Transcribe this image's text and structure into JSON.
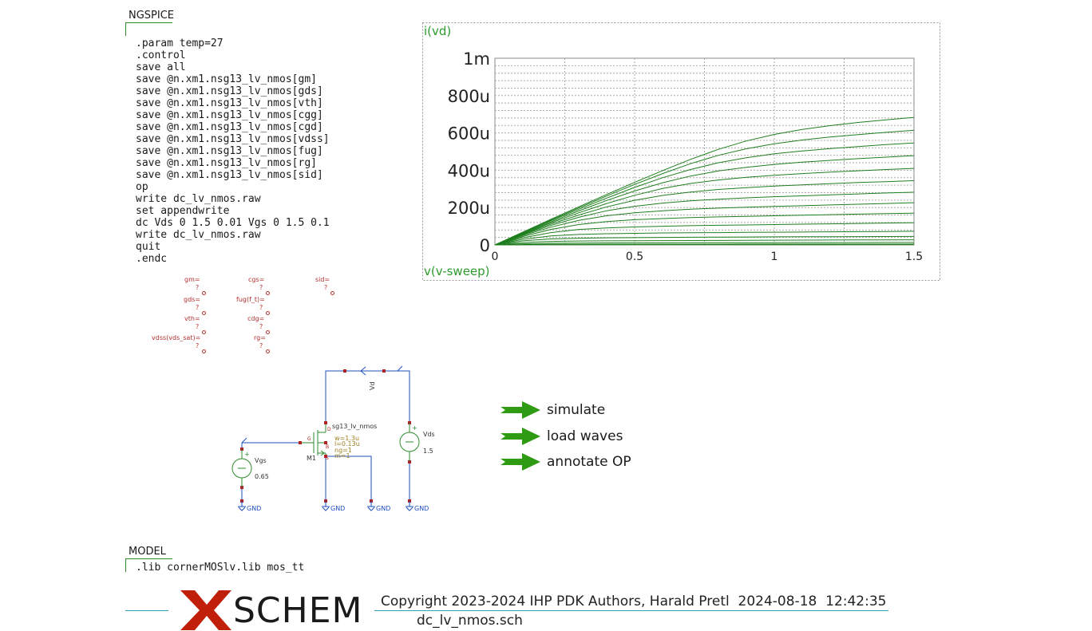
{
  "ngspice": {
    "title": "NGSPICE",
    "code": ".param temp=27\n.control\nsave all\nsave @n.xm1.nsg13_lv_nmos[gm]\nsave @n.xm1.nsg13_lv_nmos[gds]\nsave @n.xm1.nsg13_lv_nmos[vth]\nsave @n.xm1.nsg13_lv_nmos[cgg]\nsave @n.xm1.nsg13_lv_nmos[cgd]\nsave @n.xm1.nsg13_lv_nmos[vdss]\nsave @n.xm1.nsg13_lv_nmos[fug]\nsave @n.xm1.nsg13_lv_nmos[rg]\nsave @n.xm1.nsg13_lv_nmos[sid]\nop\nwrite dc_lv_nmos.raw\nset appendwrite\ndc Vds 0 1.5 0.01 Vgs 0 1.5 0.1\nwrite dc_lv_nmos.raw\nquit\n.endc"
  },
  "model": {
    "title": "MODEL",
    "line": ".lib cornerMOSlv.lib mos_tt"
  },
  "op_annotations": {
    "gm": {
      "label": "gm=",
      "value": "?"
    },
    "gds": {
      "label": "gds=",
      "value": "?"
    },
    "vth": {
      "label": "vth=",
      "value": "?"
    },
    "vdss": {
      "label": "vdss(vds_sat)=",
      "value": "?"
    },
    "cgs": {
      "label": "cgs=",
      "value": "?"
    },
    "fug": {
      "label": "fug(f_t)=",
      "value": "?"
    },
    "cdg": {
      "label": "cdg=",
      "value": "?"
    },
    "rg": {
      "label": "rg=",
      "value": "?"
    },
    "sid": {
      "label": "sid=",
      "value": "?"
    }
  },
  "schematic": {
    "transistor_name": "M1",
    "transistor_model": "sg13_lv_nmos",
    "w": "w=1.3u",
    "l": "l=0.13u",
    "ng": "ng=1",
    "m": "m=1",
    "pin_d": "D",
    "pin_g": "G",
    "pin_b": "B",
    "pin_s": "S",
    "vgs_name": "Vgs",
    "vgs_value": "0.65",
    "vds_name": "Vds",
    "vds_value": "1.5",
    "net_vd": "Vd",
    "gnd": "GND",
    "plus": "+"
  },
  "launchers": [
    {
      "label": "simulate"
    },
    {
      "label": "load waves"
    },
    {
      "label": "annotate OP"
    }
  ],
  "footer": {
    "copyright": "Copyright 2023-2024 IHP PDK Authors, Harald Pretl  2024-08-18  12:42:35",
    "filename": "dc_lv_nmos.sch",
    "logo_text": "SCHEM"
  },
  "colors": {
    "wire": "#1f4fbf",
    "component": "#2e8b2e",
    "pin": "#b22222",
    "annotation": "#b03030",
    "trace": "#1f7f1f",
    "logo_x": "#c0200a"
  },
  "chart_data": {
    "type": "line",
    "ylabel": "i(vd)",
    "xlabel": "v(v-sweep)",
    "xlim": [
      0,
      1.5
    ],
    "ylim": [
      0,
      0.001
    ],
    "x_ticks": [
      "0",
      "0.5",
      "1",
      "1.5"
    ],
    "y_ticks": [
      "0",
      "200u",
      "400u",
      "600u",
      "800u",
      "1m"
    ],
    "grid": true,
    "x": [
      0,
      0.1,
      0.2,
      0.3,
      0.4,
      0.5,
      0.6,
      0.7,
      0.8,
      0.9,
      1.0,
      1.1,
      1.2,
      1.3,
      1.4,
      1.5
    ],
    "series": [
      {
        "values": [
          0,
          5e-07,
          8e-07,
          1e-06,
          1.1e-06,
          1.2e-06,
          1.2e-06,
          1.3e-06,
          1.3e-06,
          1.3e-06,
          1.4e-06,
          1.4e-06,
          1.4e-06,
          1.5e-06,
          1.5e-06,
          1.5e-06
        ]
      },
      {
        "values": [
          0,
          2e-06,
          3e-06,
          3.5e-06,
          3.7e-06,
          3.8e-06,
          3.9e-06,
          4e-06,
          4e-06,
          4.1e-06,
          4.1e-06,
          4.2e-06,
          4.2e-06,
          4.3e-06,
          4.3e-06,
          4.4e-06
        ]
      },
      {
        "values": [
          0,
          6e-06,
          9e-06,
          1e-05,
          1.05e-05,
          1.1e-05,
          1.12e-05,
          1.14e-05,
          1.16e-05,
          1.18e-05,
          1.2e-05,
          1.22e-05,
          1.24e-05,
          1.26e-05,
          1.28e-05,
          1.3e-05
        ]
      },
      {
        "values": [
          0,
          1.3e-05,
          1.9e-05,
          2.1e-05,
          2.2e-05,
          2.25e-05,
          2.3e-05,
          2.35e-05,
          2.4e-05,
          2.45e-05,
          2.5e-05,
          2.55e-05,
          2.6e-05,
          2.65e-05,
          2.7e-05,
          2.75e-05
        ]
      },
      {
        "values": [
          0,
          2.2e-05,
          3.2e-05,
          3.6e-05,
          3.8e-05,
          3.9e-05,
          4e-05,
          4.1e-05,
          4.2e-05,
          4.25e-05,
          4.3e-05,
          4.35e-05,
          4.4e-05,
          4.45e-05,
          4.5e-05,
          4.55e-05
        ]
      },
      {
        "values": [
          0,
          3e-05,
          4.8e-05,
          5.6e-05,
          6e-05,
          6.2e-05,
          6.4e-05,
          6.5e-05,
          6.6e-05,
          6.7e-05,
          6.8e-05,
          6.9e-05,
          7e-05,
          7.1e-05,
          7.2e-05,
          7.3e-05
        ]
      },
      {
        "values": [
          0,
          3.8e-05,
          6.6e-05,
          8.3e-05,
          9.1e-05,
          9.6e-05,
          0.0001,
          0.000103,
          0.000105,
          0.000107,
          0.000109,
          0.000111,
          0.000113,
          0.000115,
          0.000117,
          0.000119
        ]
      },
      {
        "values": [
          0,
          4.5e-05,
          8.3e-05,
          0.000109,
          0.000125,
          0.000135,
          0.000141,
          0.000146,
          0.00015,
          0.000153,
          0.000156,
          0.000159,
          0.000162,
          0.000165,
          0.000168,
          0.00017
        ]
      },
      {
        "values": [
          0,
          5e-05,
          9.5e-05,
          0.000131,
          0.000156,
          0.000172,
          0.000183,
          0.000191,
          0.000197,
          0.000202,
          0.000206,
          0.00021,
          0.000214,
          0.000218,
          0.000222,
          0.000226
        ]
      },
      {
        "values": [
          0,
          5.4e-05,
          0.000104,
          0.000148,
          0.000183,
          0.000207,
          0.000224,
          0.000236,
          0.000245,
          0.000252,
          0.000258,
          0.000263,
          0.000268,
          0.000273,
          0.000278,
          0.000282
        ]
      },
      {
        "values": [
          0,
          5.7e-05,
          0.000111,
          0.00016,
          0.000204,
          0.000239,
          0.000265,
          0.000283,
          0.000297,
          0.000307,
          0.000315,
          0.000322,
          0.000328,
          0.000334,
          0.000339,
          0.000344
        ]
      },
      {
        "values": [
          0,
          6e-05,
          0.000118,
          0.000172,
          0.000222,
          0.000266,
          0.000302,
          0.000329,
          0.000348,
          0.000362,
          0.000373,
          0.000382,
          0.00039,
          0.000397,
          0.000404,
          0.00041
        ]
      },
      {
        "values": [
          0,
          6.2e-05,
          0.000123,
          0.000182,
          0.000238,
          0.000289,
          0.000333,
          0.000369,
          0.000396,
          0.000416,
          0.000431,
          0.000443,
          0.000453,
          0.000462,
          0.00047,
          0.000478
        ]
      },
      {
        "values": [
          0,
          6.5e-05,
          0.000129,
          0.000191,
          0.000251,
          0.000308,
          0.00036,
          0.000404,
          0.00044,
          0.000467,
          0.000488,
          0.000503,
          0.000516,
          0.000527,
          0.000537,
          0.000546
        ]
      },
      {
        "values": [
          0,
          6.7e-05,
          0.000133,
          0.000198,
          0.000262,
          0.000324,
          0.000382,
          0.000435,
          0.00048,
          0.000515,
          0.000542,
          0.000562,
          0.000578,
          0.000591,
          0.000603,
          0.000614
        ]
      },
      {
        "values": [
          0,
          6.9e-05,
          0.000137,
          0.000204,
          0.00027,
          0.000335,
          0.000398,
          0.000458,
          0.000512,
          0.000557,
          0.000592,
          0.000619,
          0.000639,
          0.000656,
          0.00067,
          0.000683
        ]
      }
    ]
  }
}
